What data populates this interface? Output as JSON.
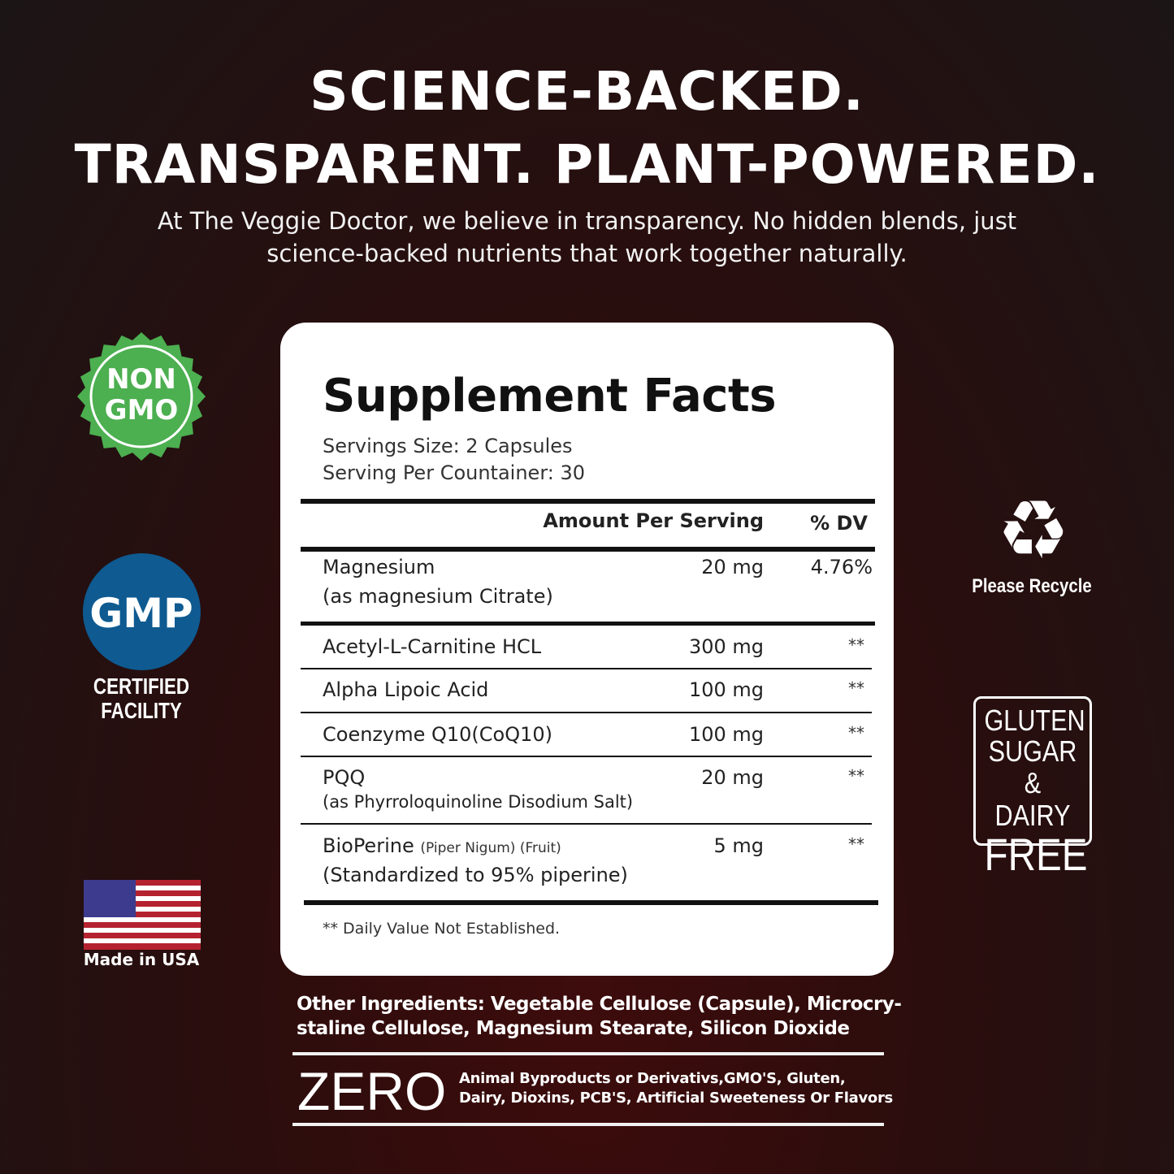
{
  "headline": {
    "line1": "SCIENCE-BACKED.",
    "line2": "TRANSPARENT. PLANT-POWERED."
  },
  "intro": {
    "line1": "At The Veggie Doctor, we believe in transparency. No hidden blends, just",
    "line2": "science-backed nutrients that work together naturally."
  },
  "facts": {
    "title": "Supplement Facts",
    "serving_size": "Servings Size: 2 Capsules",
    "servings_per_container": "Serving Per Countainer: 30",
    "col_amount": "Amount Per Serving",
    "col_dv": "% DV",
    "rows": [
      {
        "name": "Magnesium",
        "detail": "(as magnesium Citrate)",
        "amount": "20 mg",
        "dv": "4.76%"
      },
      {
        "name": "Acetyl-L-Carnitine HCL",
        "amount": "300 mg",
        "dv": "**"
      },
      {
        "name": "Alpha Lipoic Acid",
        "amount": "100 mg",
        "dv": "**"
      },
      {
        "name": "Coenzyme Q10(CoQ10)",
        "amount": "100 mg",
        "dv": "**"
      },
      {
        "name": "PQQ",
        "detail": "(as Phyrroloquinoline Disodium Salt)",
        "amount": "20 mg",
        "dv": "**"
      },
      {
        "name": "BioPerine",
        "name_note": "(Piper Nigum) (Fruit)",
        "detail": "(Standardized to 95% piperine)",
        "amount": "5 mg",
        "dv": "**"
      }
    ],
    "footnote": "** Daily Value Not Established."
  },
  "other_ingredients": {
    "line1": "Other Ingredients: Vegetable Cellulose (Capsule), Microcry-",
    "line2": "staline Cellulose, Magnesium Stearate, Silicon Dioxide"
  },
  "zero": {
    "label": "ZERO",
    "line1": "Animal Byproducts or Derivativs,GMO'S, Gluten,",
    "line2": "Dairy, Dioxins, PCB'S, Artificial Sweeteness Or Flavors"
  },
  "badges": {
    "non_gmo": {
      "line1": "NON",
      "line2": "GMO",
      "color": "#4caf50"
    },
    "gmp": {
      "label": "GMP",
      "caption1": "CERTIFIED",
      "caption2": "FACILITY",
      "color": "#0e5a91"
    },
    "usa": {
      "caption": "Made in USA"
    },
    "recycle": {
      "caption": "Please Recycle",
      "icon": "recycle-icon"
    },
    "free": {
      "line1": "GLUTEN",
      "line2": "SUGAR",
      "line3": "& DAIRY",
      "line4": "FREE"
    }
  }
}
